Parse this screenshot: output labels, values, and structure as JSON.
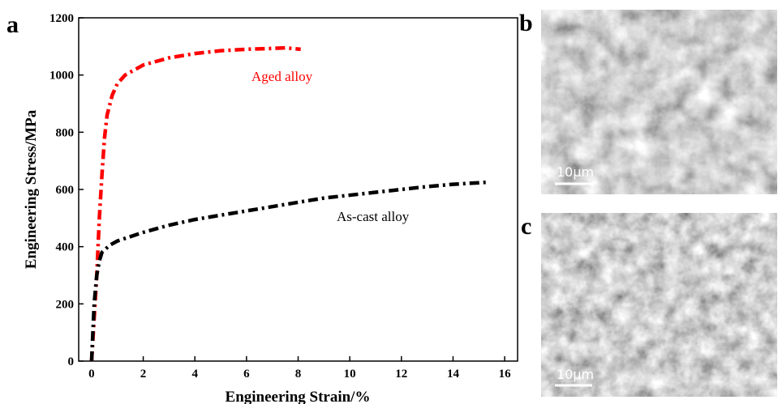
{
  "chart_data": {
    "type": "line",
    "xlabel": "Engineering Strain/%",
    "ylabel": "Engineering Stress/MPa",
    "xlim": [
      -0.5,
      16.5
    ],
    "xticks": [
      0,
      2,
      4,
      6,
      8,
      10,
      12,
      14,
      16
    ],
    "ylim": [
      0,
      1200
    ],
    "yticks": [
      0,
      200,
      400,
      600,
      800,
      1000,
      1200
    ],
    "series": [
      {
        "name": "Aged alloy",
        "color": "#ff0000",
        "x": [
          0,
          0.1,
          0.2,
          0.3,
          0.4,
          0.5,
          0.6,
          0.8,
          1.0,
          1.3,
          2,
          3,
          4,
          5,
          6,
          7,
          7.5,
          8.1
        ],
        "values": [
          0,
          150,
          300,
          500,
          650,
          780,
          860,
          930,
          970,
          1000,
          1035,
          1060,
          1075,
          1085,
          1090,
          1093,
          1095,
          1090
        ]
      },
      {
        "name": "As-cast alloy",
        "color": "#000000",
        "x": [
          0,
          0.05,
          0.1,
          0.2,
          0.3,
          0.4,
          0.7,
          1,
          2,
          3,
          4,
          5,
          6,
          7,
          8,
          9,
          10,
          11,
          12,
          13,
          14,
          15.3
        ],
        "values": [
          0,
          100,
          200,
          300,
          350,
          380,
          405,
          420,
          450,
          475,
          495,
          510,
          525,
          540,
          555,
          570,
          580,
          590,
          600,
          610,
          618,
          625
        ]
      }
    ]
  },
  "panels": [
    "a",
    "b",
    "c"
  ],
  "scale_bars": [
    "10μm",
    "10μm"
  ]
}
